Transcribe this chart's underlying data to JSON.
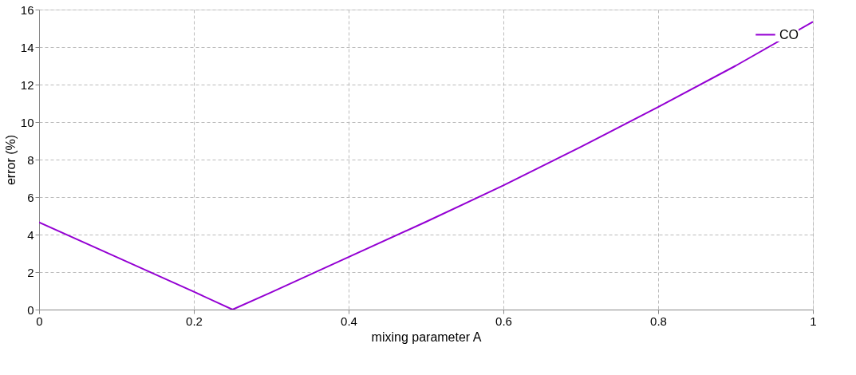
{
  "chart_data": {
    "type": "line",
    "xlabel": "mixing parameter A",
    "ylabel": "error (%)",
    "x": [
      0,
      0.1,
      0.2,
      0.25,
      0.3,
      0.4,
      0.5,
      0.6,
      0.7,
      0.8,
      0.9,
      1
    ],
    "series": [
      {
        "name": "CO",
        "color": "#9400d3",
        "values": [
          4.65,
          2.8,
          0.95,
          0,
          0.92,
          2.8,
          4.68,
          6.62,
          8.68,
          10.8,
          13.0,
          15.35
        ]
      }
    ],
    "xlim": [
      0,
      1
    ],
    "xticks": [
      0,
      0.2,
      0.4,
      0.6,
      0.8,
      1
    ],
    "ylim": [
      0,
      16
    ],
    "yticks": [
      0,
      2,
      4,
      6,
      8,
      10,
      12,
      14,
      16
    ],
    "grid": true,
    "legend": "top right",
    "marker": "none",
    "line_style": "solid"
  }
}
